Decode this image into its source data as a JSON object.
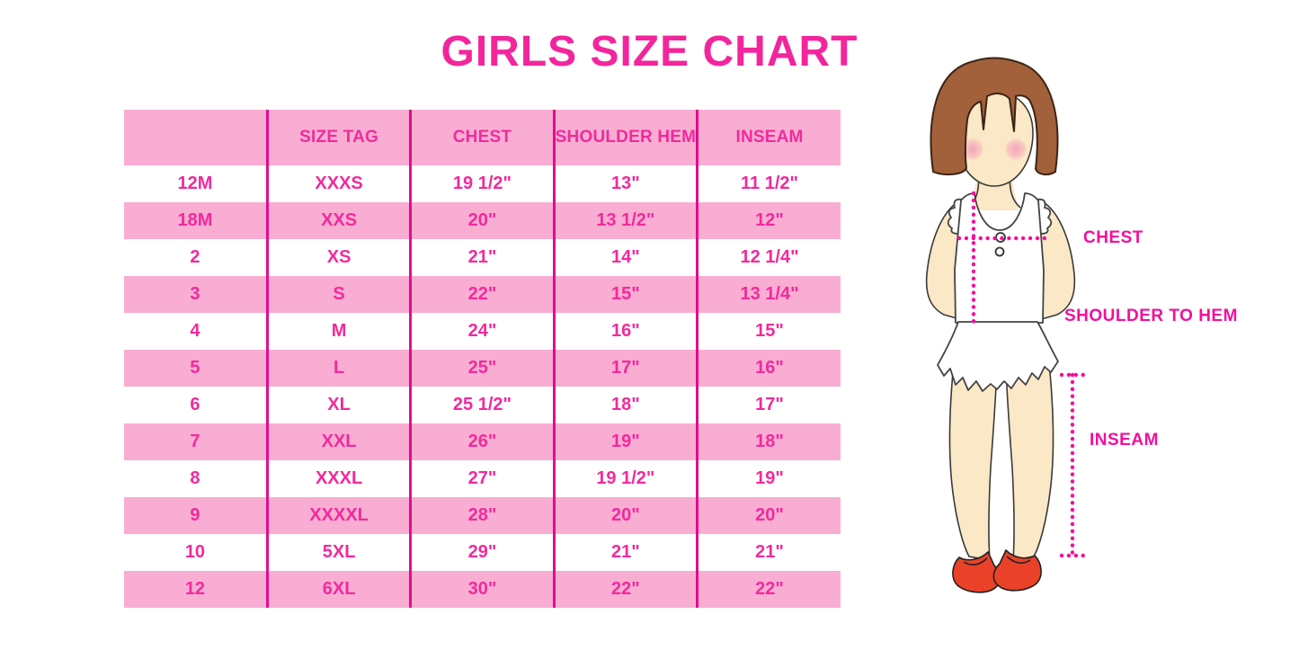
{
  "page": {
    "title": "GIRLS SIZE CHART"
  },
  "colors": {
    "title_pink": "#F3259C",
    "band_pink": "#F9ADD3",
    "cell_text_magenta": "#F12A9C",
    "grid_line_magenta": "#DF0F8C",
    "measure_line_magenta": "#F2109C",
    "hair_brown": "#A2603B",
    "skin": "#FBE8C6",
    "cheek_pink": "#F5A9BE",
    "shoe_red": "#EA4129"
  },
  "chart_data": {
    "type": "table",
    "title": "GIRLS SIZE CHART",
    "columns": [
      "",
      "SIZE TAG",
      "CHEST",
      "SHOULDER HEM",
      "INSEAM"
    ],
    "rows": [
      [
        "12M",
        "XXXS",
        "19 1/2\"",
        "13\"",
        "11 1/2\""
      ],
      [
        "18M",
        "XXS",
        "20\"",
        "13 1/2\"",
        "12\""
      ],
      [
        "2",
        "XS",
        "21\"",
        "14\"",
        "12 1/4\""
      ],
      [
        "3",
        "S",
        "22\"",
        "15\"",
        "13 1/4\""
      ],
      [
        "4",
        "M",
        "24\"",
        "16\"",
        "15\""
      ],
      [
        "5",
        "L",
        "25\"",
        "17\"",
        "16\""
      ],
      [
        "6",
        "XL",
        "25 1/2\"",
        "18\"",
        "17\""
      ],
      [
        "7",
        "XXL",
        "26\"",
        "19\"",
        "18\""
      ],
      [
        "8",
        "XXXL",
        "27\"",
        "19 1/2\"",
        "19\""
      ],
      [
        "9",
        "XXXXL",
        "28\"",
        "20\"",
        "20\""
      ],
      [
        "10",
        "5XL",
        "29\"",
        "21\"",
        "21\""
      ],
      [
        "12",
        "6XL",
        "30\"",
        "22\"",
        "22\""
      ]
    ],
    "row_striping": "header pink, then alternating white/pink",
    "legend_position": "none",
    "grid": "vertical magenta column separators only"
  },
  "figure": {
    "description_labels": {
      "chest": "CHEST",
      "shoulder_to_hem": "SHOULDER TO HEM",
      "inseam": "INSEAM"
    }
  }
}
